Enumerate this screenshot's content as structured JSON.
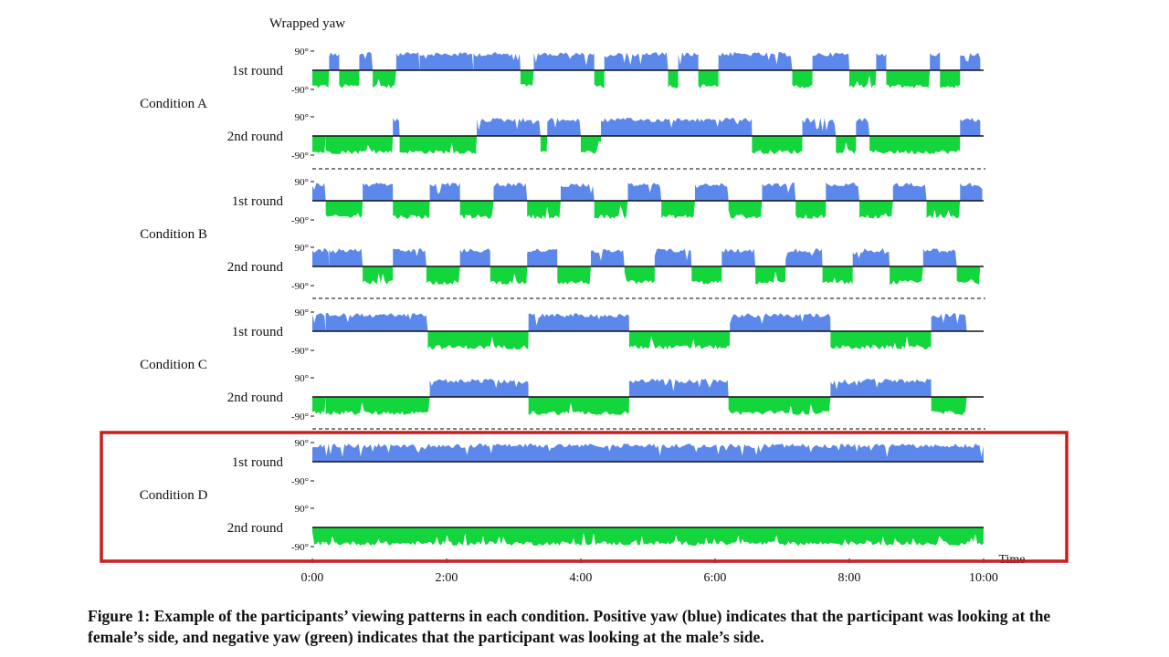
{
  "colors": {
    "positive": "#5b88ea",
    "negative": "#12d63c",
    "highlight": "#c81e1e",
    "divider": "#333333"
  },
  "chart_data": {
    "type": "area",
    "ylabel": "Wrapped yaw",
    "xlabel": "Time",
    "ytick_labels": [
      "90°",
      "-90°"
    ],
    "ylim": [
      -90,
      90
    ],
    "xlim": [
      0,
      10
    ],
    "xticks": [
      0,
      2,
      4,
      6,
      8,
      10
    ],
    "xtick_labels": [
      "0:00",
      "2:00",
      "4:00",
      "6:00",
      "8:00",
      "10:00"
    ],
    "highlighted_condition": "Condition D",
    "conditions": [
      {
        "name": "Condition A",
        "rounds": [
          {
            "name": "1st round",
            "segments": [
              [
                0,
                0.25,
                "neg"
              ],
              [
                0.25,
                0.4,
                "pos"
              ],
              [
                0.4,
                0.7,
                "neg"
              ],
              [
                0.7,
                0.9,
                "pos"
              ],
              [
                0.9,
                1.25,
                "neg"
              ],
              [
                1.25,
                1.6,
                "pos"
              ],
              [
                1.6,
                2.4,
                "pos"
              ],
              [
                2.4,
                3.1,
                "pos"
              ],
              [
                3.1,
                3.3,
                "neg"
              ],
              [
                3.3,
                4.2,
                "pos"
              ],
              [
                4.2,
                4.35,
                "neg"
              ],
              [
                4.35,
                5.3,
                "pos"
              ],
              [
                5.3,
                5.45,
                "neg"
              ],
              [
                5.45,
                5.75,
                "pos"
              ],
              [
                5.75,
                6.05,
                "neg"
              ],
              [
                6.05,
                7.15,
                "pos"
              ],
              [
                7.15,
                7.45,
                "neg"
              ],
              [
                7.45,
                8.0,
                "pos"
              ],
              [
                8.0,
                8.4,
                "neg"
              ],
              [
                8.4,
                8.55,
                "pos"
              ],
              [
                8.55,
                9.2,
                "neg"
              ],
              [
                9.2,
                9.35,
                "pos"
              ],
              [
                9.35,
                9.65,
                "neg"
              ],
              [
                9.65,
                9.95,
                "pos"
              ]
            ]
          },
          {
            "name": "2nd round",
            "segments": [
              [
                0,
                0.2,
                "neg"
              ],
              [
                0.2,
                1.2,
                "neg"
              ],
              [
                1.2,
                1.3,
                "pos"
              ],
              [
                1.3,
                2.45,
                "neg"
              ],
              [
                2.45,
                3.4,
                "pos"
              ],
              [
                3.4,
                3.5,
                "neg"
              ],
              [
                3.5,
                4.0,
                "pos"
              ],
              [
                4.0,
                4.3,
                "neg"
              ],
              [
                4.3,
                6.55,
                "pos"
              ],
              [
                6.55,
                7.3,
                "neg"
              ],
              [
                7.3,
                7.8,
                "pos"
              ],
              [
                7.8,
                8.1,
                "neg"
              ],
              [
                8.1,
                8.3,
                "pos"
              ],
              [
                8.3,
                9.65,
                "neg"
              ],
              [
                9.65,
                9.95,
                "pos"
              ]
            ]
          }
        ]
      },
      {
        "name": "Condition B",
        "rounds": [
          {
            "name": "1st round",
            "segments": [
              [
                0,
                0.2,
                "pos"
              ],
              [
                0.2,
                0.75,
                "neg"
              ],
              [
                0.75,
                1.2,
                "pos"
              ],
              [
                1.2,
                1.75,
                "neg"
              ],
              [
                1.75,
                2.2,
                "pos"
              ],
              [
                2.2,
                2.7,
                "neg"
              ],
              [
                2.7,
                3.2,
                "pos"
              ],
              [
                3.2,
                3.7,
                "neg"
              ],
              [
                3.7,
                4.2,
                "pos"
              ],
              [
                4.2,
                4.7,
                "neg"
              ],
              [
                4.7,
                5.2,
                "pos"
              ],
              [
                5.2,
                5.7,
                "neg"
              ],
              [
                5.7,
                6.2,
                "pos"
              ],
              [
                6.2,
                6.7,
                "neg"
              ],
              [
                6.7,
                7.2,
                "pos"
              ],
              [
                7.2,
                7.65,
                "neg"
              ],
              [
                7.65,
                8.15,
                "pos"
              ],
              [
                8.15,
                8.65,
                "neg"
              ],
              [
                8.65,
                9.15,
                "pos"
              ],
              [
                9.15,
                9.65,
                "neg"
              ],
              [
                9.65,
                9.98,
                "pos"
              ]
            ]
          },
          {
            "name": "2nd round",
            "segments": [
              [
                0,
                0.25,
                "pos"
              ],
              [
                0.25,
                0.75,
                "pos"
              ],
              [
                0.75,
                1.2,
                "neg"
              ],
              [
                1.2,
                1.7,
                "pos"
              ],
              [
                1.7,
                2.2,
                "neg"
              ],
              [
                2.2,
                2.65,
                "pos"
              ],
              [
                2.65,
                3.2,
                "neg"
              ],
              [
                3.2,
                3.65,
                "pos"
              ],
              [
                3.65,
                4.15,
                "neg"
              ],
              [
                4.15,
                4.65,
                "pos"
              ],
              [
                4.65,
                5.1,
                "neg"
              ],
              [
                5.1,
                5.65,
                "pos"
              ],
              [
                5.65,
                6.1,
                "neg"
              ],
              [
                6.1,
                6.6,
                "pos"
              ],
              [
                6.6,
                7.05,
                "neg"
              ],
              [
                7.05,
                7.6,
                "pos"
              ],
              [
                7.6,
                8.05,
                "neg"
              ],
              [
                8.05,
                8.6,
                "pos"
              ],
              [
                8.6,
                9.1,
                "neg"
              ],
              [
                9.1,
                9.6,
                "pos"
              ],
              [
                9.6,
                9.95,
                "neg"
              ]
            ]
          }
        ]
      },
      {
        "name": "Condition C",
        "rounds": [
          {
            "name": "1st round",
            "segments": [
              [
                0,
                0.2,
                "pos"
              ],
              [
                0.2,
                1.72,
                "pos"
              ],
              [
                1.72,
                3.22,
                "neg"
              ],
              [
                3.22,
                4.72,
                "pos"
              ],
              [
                4.72,
                6.22,
                "neg"
              ],
              [
                6.22,
                7.72,
                "pos"
              ],
              [
                7.72,
                9.22,
                "neg"
              ],
              [
                9.22,
                9.75,
                "pos"
              ]
            ]
          },
          {
            "name": "2nd round",
            "segments": [
              [
                0,
                0.2,
                "neg"
              ],
              [
                0.2,
                1.75,
                "neg"
              ],
              [
                1.75,
                3.22,
                "pos"
              ],
              [
                3.22,
                4.72,
                "neg"
              ],
              [
                4.72,
                6.2,
                "pos"
              ],
              [
                6.2,
                7.72,
                "neg"
              ],
              [
                7.72,
                9.22,
                "pos"
              ],
              [
                9.22,
                9.75,
                "neg"
              ]
            ]
          }
        ]
      },
      {
        "name": "Condition D",
        "rounds": [
          {
            "name": "1st round",
            "segments": [
              [
                0,
                10,
                "pos"
              ]
            ]
          },
          {
            "name": "2nd round",
            "segments": [
              [
                0,
                10,
                "neg"
              ]
            ]
          }
        ]
      }
    ]
  },
  "caption": {
    "text": "Figure 1: Example of the participants’ viewing patterns in each condition. Positive yaw (blue) indicates that the participant was looking at the female’s side, and negative yaw (green) indicates that the participant was looking at the male’s side."
  }
}
